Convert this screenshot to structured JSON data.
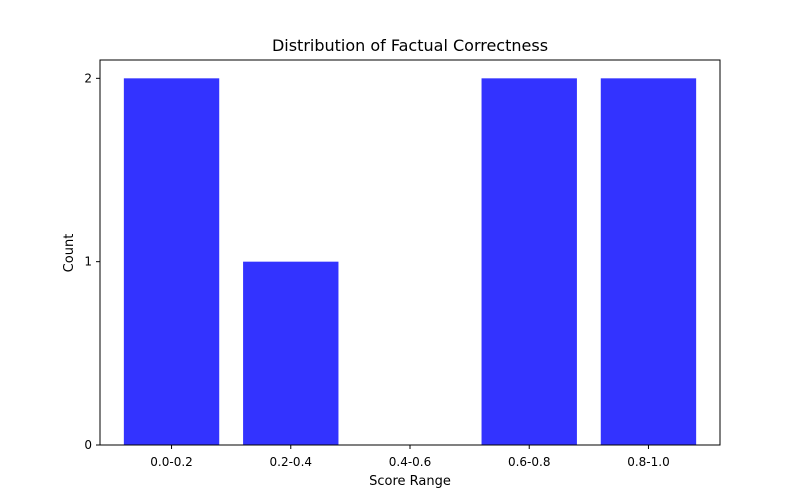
{
  "chart_data": {
    "type": "bar",
    "title": "Distribution of Factual Correctness",
    "xlabel": "Score Range",
    "ylabel": "Count",
    "categories": [
      "0.0-0.2",
      "0.2-0.4",
      "0.4-0.6",
      "0.6-0.8",
      "0.8-1.0"
    ],
    "values": [
      2,
      1,
      0,
      2,
      2
    ],
    "ylim": [
      0,
      2.1
    ],
    "yticks": [
      "0",
      "1",
      "2"
    ],
    "bar_color": "#3333ff",
    "grid": false,
    "legend": "none"
  }
}
